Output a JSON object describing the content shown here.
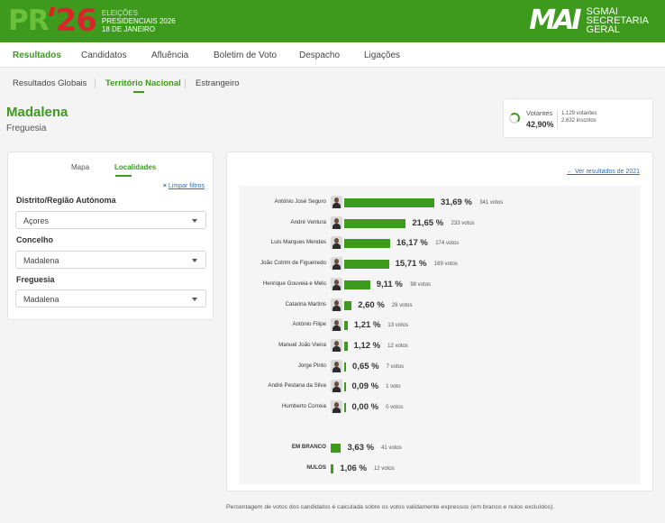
{
  "header": {
    "logo": {
      "pr": "PR",
      "num": "26",
      "line1": "ELEIÇÕES",
      "line2": "PRESIDENCIAIS 2026",
      "line3": "18 DE JANEIRO"
    },
    "brand": {
      "mark": "MAI",
      "line1": "SGMAI",
      "line2": "SECRETARIA",
      "line3": "GERAL"
    }
  },
  "nav": {
    "items": [
      "Resultados",
      "Candidatos",
      "Afluência",
      "Boletim de Voto",
      "Despacho",
      "Ligações"
    ],
    "active": "Resultados"
  },
  "subnav": {
    "items": [
      "Resultados Globais",
      "Território Nacional",
      "Estrangeiro"
    ],
    "active": "Território Nacional"
  },
  "place": {
    "name": "Madalena",
    "type": "Freguesia"
  },
  "voters": {
    "label": "Votantes",
    "percent": "42,90%",
    "percent_value": 42.9,
    "votantes": "1.129 votantes",
    "inscritos": "2.632 inscritos"
  },
  "filters": {
    "tabs": [
      "Mapa",
      "Localidades"
    ],
    "active_tab": "Localidades",
    "clear_label": "Limpar filtros",
    "fields": [
      {
        "label": "Distrito/Região Autónoma",
        "value": "Açores"
      },
      {
        "label": "Concelho",
        "value": "Madalena"
      },
      {
        "label": "Freguesia",
        "value": "Madalena"
      }
    ]
  },
  "results": {
    "back_link": "Ver resultados de 2021",
    "candidates": [
      {
        "name": "António José Seguro",
        "pct": "31,69 %",
        "pct_value": 31.69,
        "votes": "341 votos"
      },
      {
        "name": "André Ventura",
        "pct": "21,65 %",
        "pct_value": 21.65,
        "votes": "233 votos"
      },
      {
        "name": "Luís Marques Mendes",
        "pct": "16,17 %",
        "pct_value": 16.17,
        "votes": "174 votos"
      },
      {
        "name": "João Cotrim de Figueiredo",
        "pct": "15,71 %",
        "pct_value": 15.71,
        "votes": "169 votos"
      },
      {
        "name": "Henrique Gouveia e Melo",
        "pct": "9,11 %",
        "pct_value": 9.11,
        "votes": "98 votos"
      },
      {
        "name": "Catarina Martins",
        "pct": "2,60 %",
        "pct_value": 2.6,
        "votes": "28 votos"
      },
      {
        "name": "António Filipe",
        "pct": "1,21 %",
        "pct_value": 1.21,
        "votes": "13 votos"
      },
      {
        "name": "Manuel João Vieira",
        "pct": "1,12 %",
        "pct_value": 1.12,
        "votes": "12 votos"
      },
      {
        "name": "Jorge Pinto",
        "pct": "0,65 %",
        "pct_value": 0.65,
        "votes": "7 votos"
      },
      {
        "name": "André Pestana da Silva",
        "pct": "0,09 %",
        "pct_value": 0.09,
        "votes": "1 voto"
      },
      {
        "name": "Humberto Correia",
        "pct": "0,00 %",
        "pct_value": 0.0,
        "votes": "0 votos"
      }
    ],
    "others": [
      {
        "name": "EM BRANCO",
        "pct": "3,63 %",
        "pct_value": 3.63,
        "votes": "41 votos"
      },
      {
        "name": "NULOS",
        "pct": "1,06 %",
        "pct_value": 1.06,
        "votes": "12 votos"
      }
    ],
    "footnote": "Percentagem de votos dos candidatos é calculada sobre os votos validamente expressos (em branco e nulos excluídos)."
  },
  "colors": {
    "primary": "#3d9a1d",
    "link": "#2f6fb3"
  }
}
